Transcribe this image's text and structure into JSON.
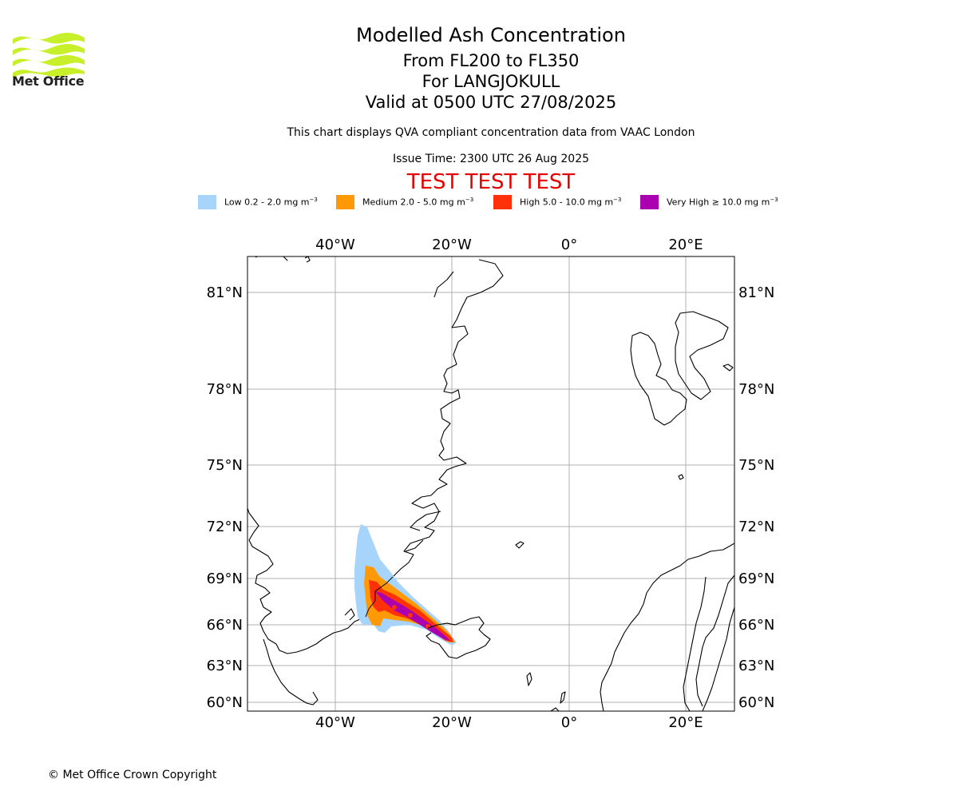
{
  "brand": {
    "name": "Met Office",
    "accent": "#c8f02a"
  },
  "header": {
    "title": "Modelled Ash Concentration",
    "levels": "From FL200 to FL350",
    "volcano": "For LANGJOKULL",
    "valid": "Valid at 0500 UTC 27/08/2025",
    "note": "This chart displays QVA compliant concentration data from VAAC London",
    "issue": "Issue Time: 2300 UTC 26 Aug 2025",
    "test_banner": "TEST TEST TEST"
  },
  "legend": [
    {
      "label": "Low 0.2 - 2.0 mg m",
      "unit_exp": "−3",
      "color": "#a6d4fa"
    },
    {
      "label": "Medium 2.0 - 5.0 mg m",
      "unit_exp": "−3",
      "color": "#ff9a06"
    },
    {
      "label": "High 5.0 - 10.0 mg m",
      "unit_exp": "−3",
      "color": "#ff3108"
    },
    {
      "label": "Very High  ≥  10.0 mg m",
      "unit_exp": "−3",
      "color": "#aa00b0"
    }
  ],
  "map": {
    "lon_range": [
      -55,
      28
    ],
    "lat_range": [
      59.5,
      82.5
    ],
    "lon_ticks": [
      {
        "value": -40,
        "label": "40°W"
      },
      {
        "value": -20,
        "label": "20°W"
      },
      {
        "value": 0,
        "label": "0°"
      },
      {
        "value": 20,
        "label": "20°E"
      }
    ],
    "lat_ticks": [
      {
        "value": 81,
        "label": "81°N"
      },
      {
        "value": 78,
        "label": "78°N"
      },
      {
        "value": 75,
        "label": "75°N"
      },
      {
        "value": 72,
        "label": "72°N"
      },
      {
        "value": 69,
        "label": "69°N"
      },
      {
        "value": 66,
        "label": "66°N"
      },
      {
        "value": 63,
        "label": "63°N"
      },
      {
        "value": 60,
        "label": "60°N"
      }
    ],
    "grid": true
  },
  "footer": {
    "copyright": "© Met Office Crown Copyright"
  }
}
